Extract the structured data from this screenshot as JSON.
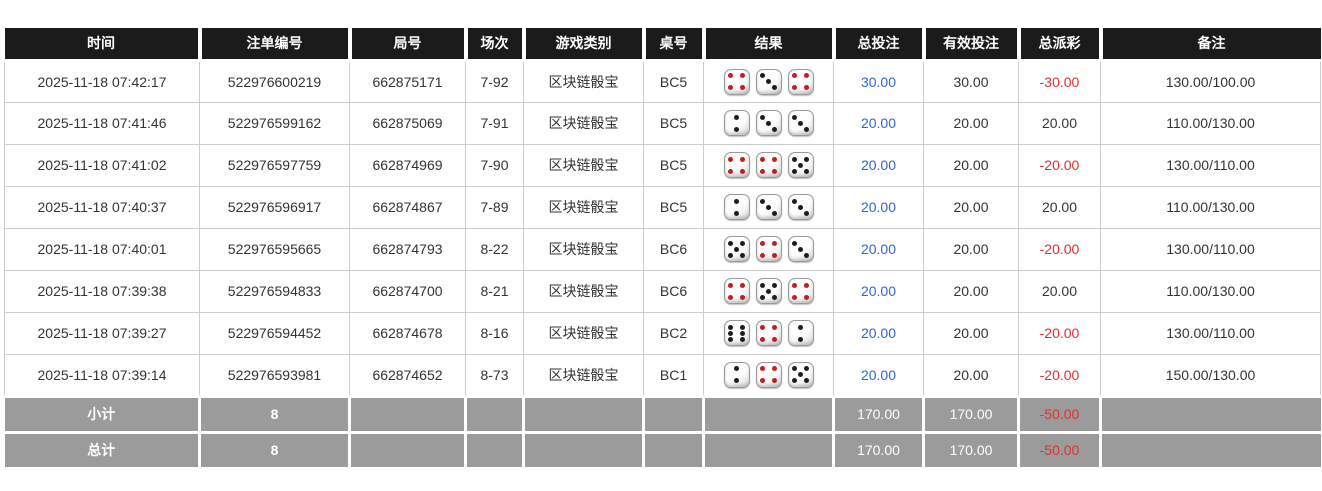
{
  "table": {
    "columns": [
      {
        "key": "time",
        "label": "时间"
      },
      {
        "key": "bet_id",
        "label": "注单编号"
      },
      {
        "key": "round_id",
        "label": "局号"
      },
      {
        "key": "session",
        "label": "场次"
      },
      {
        "key": "game_type",
        "label": "游戏类别"
      },
      {
        "key": "table_no",
        "label": "桌号"
      },
      {
        "key": "result",
        "label": "结果"
      },
      {
        "key": "total_bet",
        "label": "总投注"
      },
      {
        "key": "valid_bet",
        "label": "有效投注"
      },
      {
        "key": "payout",
        "label": "总派彩"
      },
      {
        "key": "remark",
        "label": "备注"
      }
    ],
    "dice_red_values": [
      1,
      4
    ],
    "rows": [
      {
        "time": "2025-11-18 07:42:17",
        "bet_id": "522976600219",
        "round_id": "662875171",
        "session": "7-92",
        "game_type": "区块链骰宝",
        "table_no": "BC5",
        "dice": [
          4,
          3,
          4
        ],
        "total_bet": "30.00",
        "valid_bet": "30.00",
        "payout": "-30.00",
        "remark": "130.00/100.00"
      },
      {
        "time": "2025-11-18 07:41:46",
        "bet_id": "522976599162",
        "round_id": "662875069",
        "session": "7-91",
        "game_type": "区块链骰宝",
        "table_no": "BC5",
        "dice": [
          2,
          3,
          3
        ],
        "total_bet": "20.00",
        "valid_bet": "20.00",
        "payout": "20.00",
        "remark": "110.00/130.00"
      },
      {
        "time": "2025-11-18 07:41:02",
        "bet_id": "522976597759",
        "round_id": "662874969",
        "session": "7-90",
        "game_type": "区块链骰宝",
        "table_no": "BC5",
        "dice": [
          4,
          4,
          5
        ],
        "total_bet": "20.00",
        "valid_bet": "20.00",
        "payout": "-20.00",
        "remark": "130.00/110.00"
      },
      {
        "time": "2025-11-18 07:40:37",
        "bet_id": "522976596917",
        "round_id": "662874867",
        "session": "7-89",
        "game_type": "区块链骰宝",
        "table_no": "BC5",
        "dice": [
          2,
          3,
          3
        ],
        "total_bet": "20.00",
        "valid_bet": "20.00",
        "payout": "20.00",
        "remark": "110.00/130.00"
      },
      {
        "time": "2025-11-18 07:40:01",
        "bet_id": "522976595665",
        "round_id": "662874793",
        "session": "8-22",
        "game_type": "区块链骰宝",
        "table_no": "BC6",
        "dice": [
          5,
          4,
          3
        ],
        "total_bet": "20.00",
        "valid_bet": "20.00",
        "payout": "-20.00",
        "remark": "130.00/110.00"
      },
      {
        "time": "2025-11-18 07:39:38",
        "bet_id": "522976594833",
        "round_id": "662874700",
        "session": "8-21",
        "game_type": "区块链骰宝",
        "table_no": "BC6",
        "dice": [
          4,
          5,
          4
        ],
        "total_bet": "20.00",
        "valid_bet": "20.00",
        "payout": "20.00",
        "remark": "110.00/130.00"
      },
      {
        "time": "2025-11-18 07:39:27",
        "bet_id": "522976594452",
        "round_id": "662874678",
        "session": "8-16",
        "game_type": "区块链骰宝",
        "table_no": "BC2",
        "dice": [
          6,
          4,
          2
        ],
        "total_bet": "20.00",
        "valid_bet": "20.00",
        "payout": "-20.00",
        "remark": "130.00/110.00"
      },
      {
        "time": "2025-11-18 07:39:14",
        "bet_id": "522976593981",
        "round_id": "662874652",
        "session": "8-73",
        "game_type": "区块链骰宝",
        "table_no": "BC1",
        "dice": [
          2,
          4,
          5
        ],
        "total_bet": "20.00",
        "valid_bet": "20.00",
        "payout": "-20.00",
        "remark": "150.00/130.00"
      }
    ],
    "summary_rows": [
      {
        "label": "小计",
        "count": "8",
        "total_bet": "170.00",
        "valid_bet": "170.00",
        "payout": "-50.00"
      },
      {
        "label": "总计",
        "count": "8",
        "total_bet": "170.00",
        "valid_bet": "170.00",
        "payout": "-50.00"
      }
    ],
    "colors": {
      "header_bg": "#1b1b1b",
      "link_blue": "#3366cc",
      "negative_red": "#e03030",
      "summary_bg": "#9b9b9b"
    }
  }
}
